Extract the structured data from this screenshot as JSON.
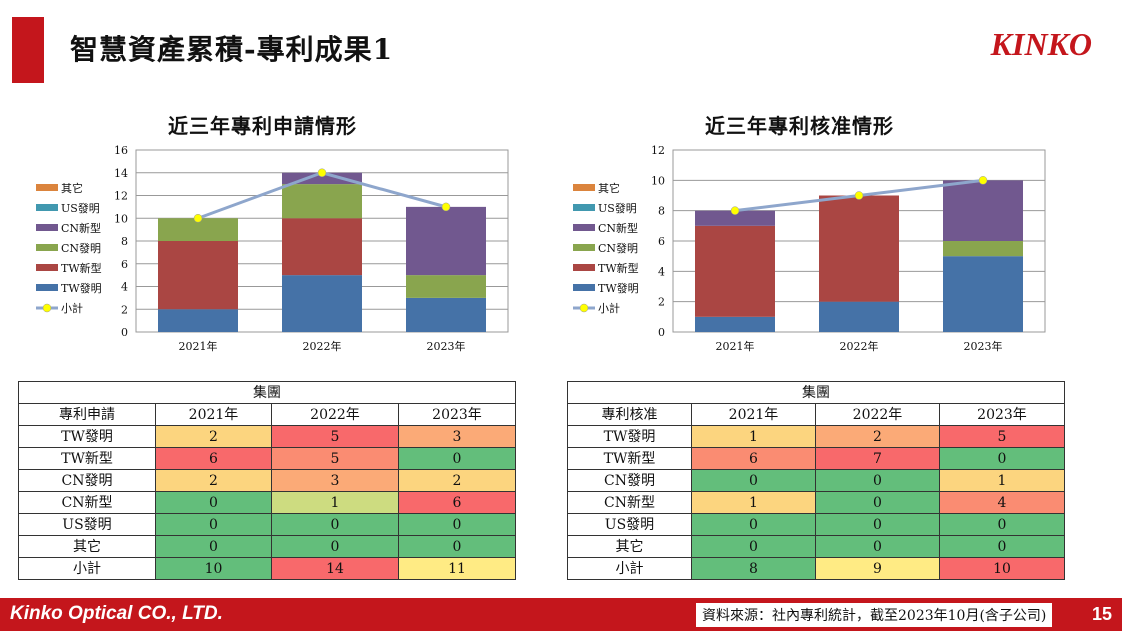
{
  "header": {
    "title": "智慧資產累積-專利成果1",
    "logo": "KINKO"
  },
  "chart_data": [
    {
      "type": "bar",
      "title": "近三年專利申請情形",
      "categories": [
        "2021年",
        "2022年",
        "2023年"
      ],
      "ylim": [
        0,
        16
      ],
      "yticks": [
        0,
        2,
        4,
        6,
        8,
        10,
        12,
        14,
        16
      ],
      "grid": true,
      "legend_position": "left",
      "series": [
        {
          "name": "TW發明",
          "values": [
            2,
            5,
            3
          ],
          "color": "#4572a7"
        },
        {
          "name": "TW新型",
          "values": [
            6,
            5,
            0
          ],
          "color": "#aa4643"
        },
        {
          "name": "CN發明",
          "values": [
            2,
            3,
            2
          ],
          "color": "#89a54e"
        },
        {
          "name": "CN新型",
          "values": [
            0,
            1,
            6
          ],
          "color": "#71588f"
        },
        {
          "name": "US發明",
          "values": [
            0,
            0,
            0
          ],
          "color": "#4198af"
        },
        {
          "name": "其它",
          "values": [
            0,
            0,
            0
          ],
          "color": "#db843d"
        }
      ],
      "line": {
        "name": "小計",
        "values": [
          10,
          14,
          11
        ],
        "color": "#8ea6cc",
        "marker": "#ffff00"
      }
    },
    {
      "type": "bar",
      "title": "近三年專利核准情形",
      "categories": [
        "2021年",
        "2022年",
        "2023年"
      ],
      "ylim": [
        0,
        12
      ],
      "yticks": [
        0,
        2,
        4,
        6,
        8,
        10,
        12
      ],
      "grid": true,
      "legend_position": "left",
      "series": [
        {
          "name": "TW發明",
          "values": [
            1,
            2,
            5
          ],
          "color": "#4572a7"
        },
        {
          "name": "TW新型",
          "values": [
            6,
            7,
            0
          ],
          "color": "#aa4643"
        },
        {
          "name": "CN發明",
          "values": [
            0,
            0,
            1
          ],
          "color": "#89a54e"
        },
        {
          "name": "CN新型",
          "values": [
            1,
            0,
            4
          ],
          "color": "#71588f"
        },
        {
          "name": "US發明",
          "values": [
            0,
            0,
            0
          ],
          "color": "#4198af"
        },
        {
          "name": "其它",
          "values": [
            0,
            0,
            0
          ],
          "color": "#db843d"
        }
      ],
      "line": {
        "name": "小計",
        "values": [
          8,
          9,
          10
        ],
        "color": "#8ea6cc",
        "marker": "#ffff00"
      }
    }
  ],
  "tables": [
    {
      "group": "集團",
      "corner": "專利申請",
      "years": [
        "2021年",
        "2022年",
        "2023年"
      ],
      "rows": [
        {
          "label": "TW發明",
          "values": [
            "2",
            "5",
            "3"
          ],
          "colors": [
            "#fcd57f",
            "#f8696b",
            "#fbaa77"
          ]
        },
        {
          "label": "TW新型",
          "values": [
            "6",
            "5",
            "0"
          ],
          "colors": [
            "#f8696b",
            "#fa8c72",
            "#63be7b"
          ]
        },
        {
          "label": "CN發明",
          "values": [
            "2",
            "3",
            "2"
          ],
          "colors": [
            "#fcd57f",
            "#fbaa77",
            "#fcd57f"
          ]
        },
        {
          "label": "CN新型",
          "values": [
            "0",
            "1",
            "6"
          ],
          "colors": [
            "#63be7b",
            "#cddc80",
            "#f8696b"
          ]
        },
        {
          "label": "US發明",
          "values": [
            "0",
            "0",
            "0"
          ],
          "colors": [
            "#63be7b",
            "#63be7b",
            "#63be7b"
          ]
        },
        {
          "label": "其它",
          "values": [
            "0",
            "0",
            "0"
          ],
          "colors": [
            "#63be7b",
            "#63be7b",
            "#63be7b"
          ]
        },
        {
          "label": "小計",
          "values": [
            "10",
            "14",
            "11"
          ],
          "colors": [
            "#63be7b",
            "#f8696b",
            "#ffeb84"
          ]
        }
      ]
    },
    {
      "group": "集團",
      "corner": "專利核准",
      "years": [
        "2021年",
        "2022年",
        "2023年"
      ],
      "rows": [
        {
          "label": "TW發明",
          "values": [
            "1",
            "2",
            "5"
          ],
          "colors": [
            "#fcd57f",
            "#fbaa77",
            "#f8696b"
          ]
        },
        {
          "label": "TW新型",
          "values": [
            "6",
            "7",
            "0"
          ],
          "colors": [
            "#fa8c72",
            "#f8696b",
            "#63be7b"
          ]
        },
        {
          "label": "CN發明",
          "values": [
            "0",
            "0",
            "1"
          ],
          "colors": [
            "#63be7b",
            "#63be7b",
            "#fcd57f"
          ]
        },
        {
          "label": "CN新型",
          "values": [
            "1",
            "0",
            "4"
          ],
          "colors": [
            "#fcd57f",
            "#63be7b",
            "#fa8c72"
          ]
        },
        {
          "label": "US發明",
          "values": [
            "0",
            "0",
            "0"
          ],
          "colors": [
            "#63be7b",
            "#63be7b",
            "#63be7b"
          ]
        },
        {
          "label": "其它",
          "values": [
            "0",
            "0",
            "0"
          ],
          "colors": [
            "#63be7b",
            "#63be7b",
            "#63be7b"
          ]
        },
        {
          "label": "小計",
          "values": [
            "8",
            "9",
            "10"
          ],
          "colors": [
            "#63be7b",
            "#ffeb84",
            "#f8696b"
          ]
        }
      ]
    }
  ],
  "footer": {
    "company": "Kinko Optical CO., LTD.",
    "source": "資料來源：社內專利統計，截至2023年10月(含子公司)",
    "page": "15"
  }
}
